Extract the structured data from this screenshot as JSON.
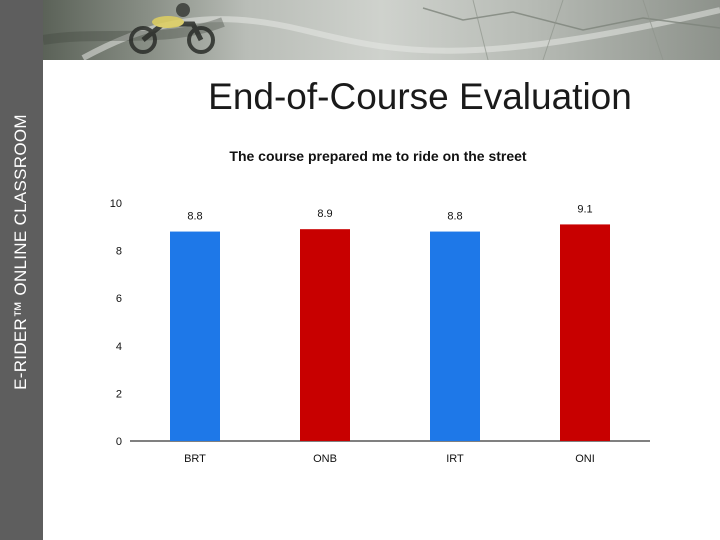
{
  "sidebar": {
    "label": "E-RIDER™ ONLINE CLASSROOM"
  },
  "slide": {
    "title": "End-of-Course Evaluation"
  },
  "colors": {
    "blue": "#1e78e8",
    "red": "#c80000",
    "sidebar": "#5e5e5e"
  },
  "chart_data": {
    "type": "bar",
    "title": "The course prepared me to ride on the street",
    "categories": [
      "BRT",
      "ONB",
      "IRT",
      "ONI"
    ],
    "values": [
      8.8,
      8.9,
      8.8,
      9.1
    ],
    "value_labels": [
      "8.8",
      "8.9",
      "8.8",
      "9.1"
    ],
    "bar_colors": [
      "#1e78e8",
      "#c80000",
      "#1e78e8",
      "#c80000"
    ],
    "ylim": [
      0,
      10
    ],
    "yticks": [
      0,
      2,
      4,
      6,
      8,
      10
    ],
    "xlabel": "",
    "ylabel": "",
    "grid": false,
    "legend": "none"
  }
}
